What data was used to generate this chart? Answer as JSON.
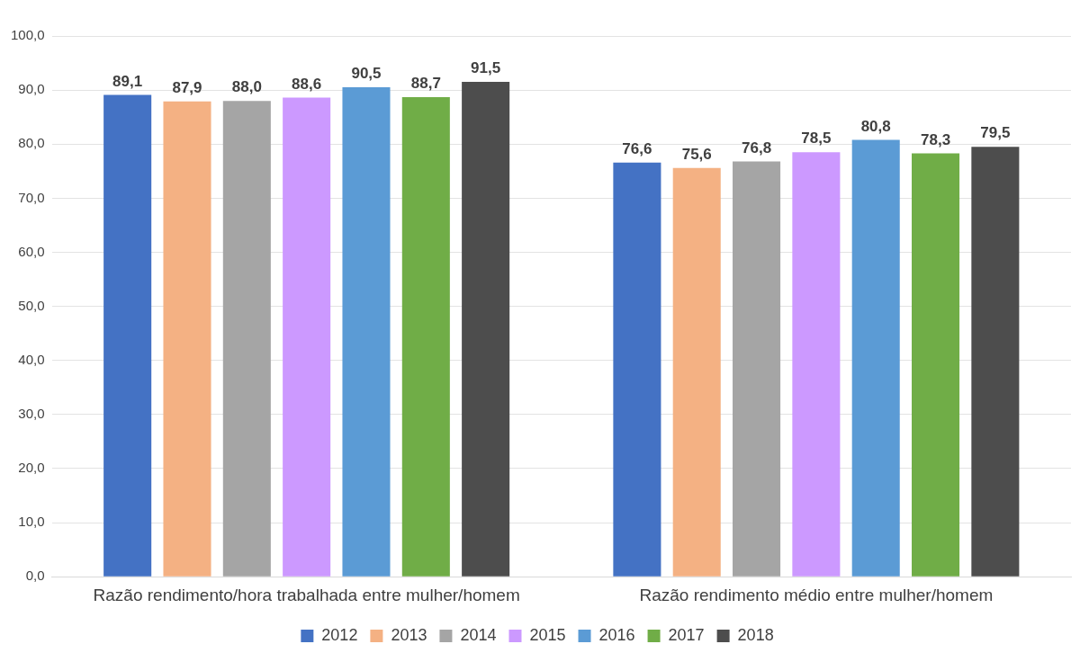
{
  "chart_data": {
    "type": "bar",
    "categories": [
      "Razão rendimento/hora trabalhada entre mulher/homem",
      "Razão rendimento médio entre mulher/homem"
    ],
    "series": [
      {
        "name": "2012",
        "color": "#4472c4",
        "values": [
          89.1,
          76.6
        ],
        "value_labels": [
          "89,1",
          "76,6"
        ]
      },
      {
        "name": "2013",
        "color": "#f4b183",
        "values": [
          87.9,
          75.6
        ],
        "value_labels": [
          "87,9",
          "75,6"
        ]
      },
      {
        "name": "2014",
        "color": "#a5a5a5",
        "values": [
          88.0,
          76.8
        ],
        "value_labels": [
          "88,0",
          "76,8"
        ]
      },
      {
        "name": "2015",
        "color": "#cc99ff",
        "values": [
          88.6,
          78.5
        ],
        "value_labels": [
          "88,6",
          "78,5"
        ]
      },
      {
        "name": "2016",
        "color": "#5b9bd5",
        "values": [
          90.5,
          80.8
        ],
        "value_labels": [
          "90,5",
          "80,8"
        ]
      },
      {
        "name": "2017",
        "color": "#70ad47",
        "values": [
          88.7,
          78.3
        ],
        "value_labels": [
          "88,7",
          "78,3"
        ]
      },
      {
        "name": "2018",
        "color": "#4d4d4d",
        "values": [
          91.5,
          79.5
        ],
        "value_labels": [
          "91,5",
          "79,5"
        ]
      }
    ],
    "ylim": [
      0,
      100
    ],
    "yticks": [
      {
        "value": 0,
        "label": "0,0"
      },
      {
        "value": 10,
        "label": "10,0"
      },
      {
        "value": 20,
        "label": "20,0"
      },
      {
        "value": 30,
        "label": "30,0"
      },
      {
        "value": 40,
        "label": "40,0"
      },
      {
        "value": 50,
        "label": "50,0"
      },
      {
        "value": 60,
        "label": "60,0"
      },
      {
        "value": 70,
        "label": "70,0"
      },
      {
        "value": 80,
        "label": "80,0"
      },
      {
        "value": 90,
        "label": "90,0"
      },
      {
        "value": 100,
        "label": "100,0"
      }
    ],
    "grid": "y",
    "legend": "bottom"
  }
}
